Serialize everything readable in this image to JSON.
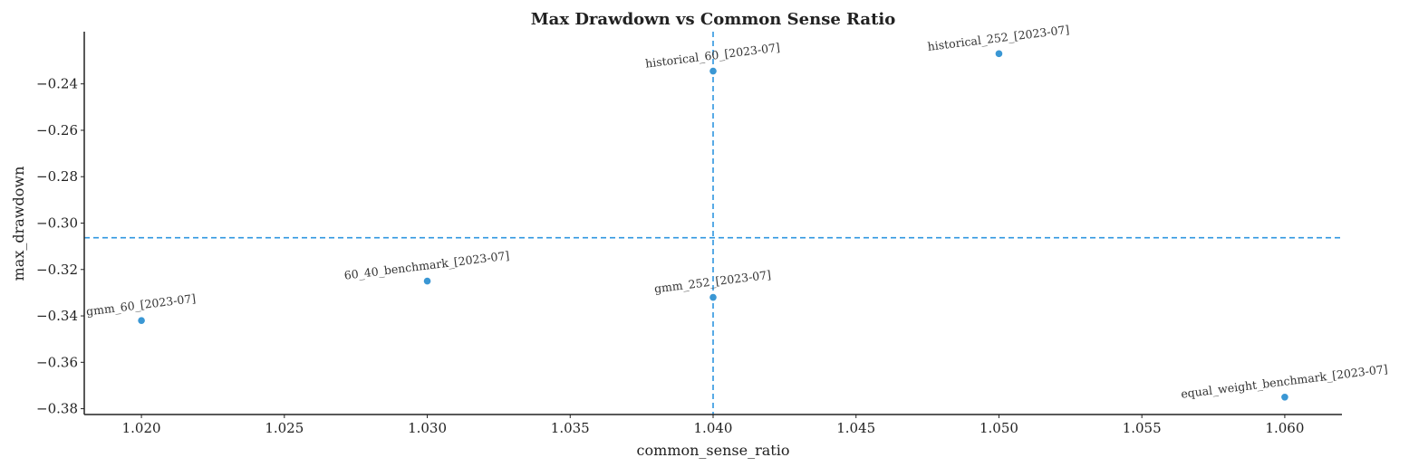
{
  "chart_data": {
    "type": "scatter",
    "title": "Max Drawdown vs Common Sense Ratio",
    "xlabel": "common_sense_ratio",
    "ylabel": "max_drawdown",
    "xlim": [
      1.018,
      1.062
    ],
    "ylim": [
      -0.3825,
      -0.2175
    ],
    "xticks": [
      1.02,
      1.025,
      1.03,
      1.035,
      1.04,
      1.045,
      1.05,
      1.055,
      1.06
    ],
    "xtick_labels": [
      "1.020",
      "1.025",
      "1.030",
      "1.035",
      "1.040",
      "1.045",
      "1.050",
      "1.055",
      "1.060"
    ],
    "yticks": [
      -0.24,
      -0.26,
      -0.28,
      -0.3,
      -0.32,
      -0.34,
      -0.36,
      -0.38
    ],
    "ytick_labels": [
      "−0.24",
      "−0.26",
      "−0.28",
      "−0.30",
      "−0.32",
      "−0.34",
      "−0.36",
      "−0.38"
    ],
    "points": [
      {
        "label": "gmm_60_[2023-07]",
        "x": 1.02,
        "y": -0.342
      },
      {
        "label": "60_40_benchmark_[2023-07]",
        "x": 1.03,
        "y": -0.325
      },
      {
        "label": "historical_60_[2023-07]",
        "x": 1.04,
        "y": -0.2345
      },
      {
        "label": "gmm_252_[2023-07]",
        "x": 1.04,
        "y": -0.332
      },
      {
        "label": "historical_252_[2023-07]",
        "x": 1.05,
        "y": -0.227
      },
      {
        "label": "equal_weight_benchmark_[2023-07]",
        "x": 1.06,
        "y": -0.375
      }
    ],
    "reference_lines": {
      "vertical_x": 1.04,
      "horizontal_y": -0.3063
    },
    "grid": false,
    "colors": {
      "points": "#3a97d4",
      "reference_lines": "#2f96e0",
      "axes": "#222222"
    }
  }
}
